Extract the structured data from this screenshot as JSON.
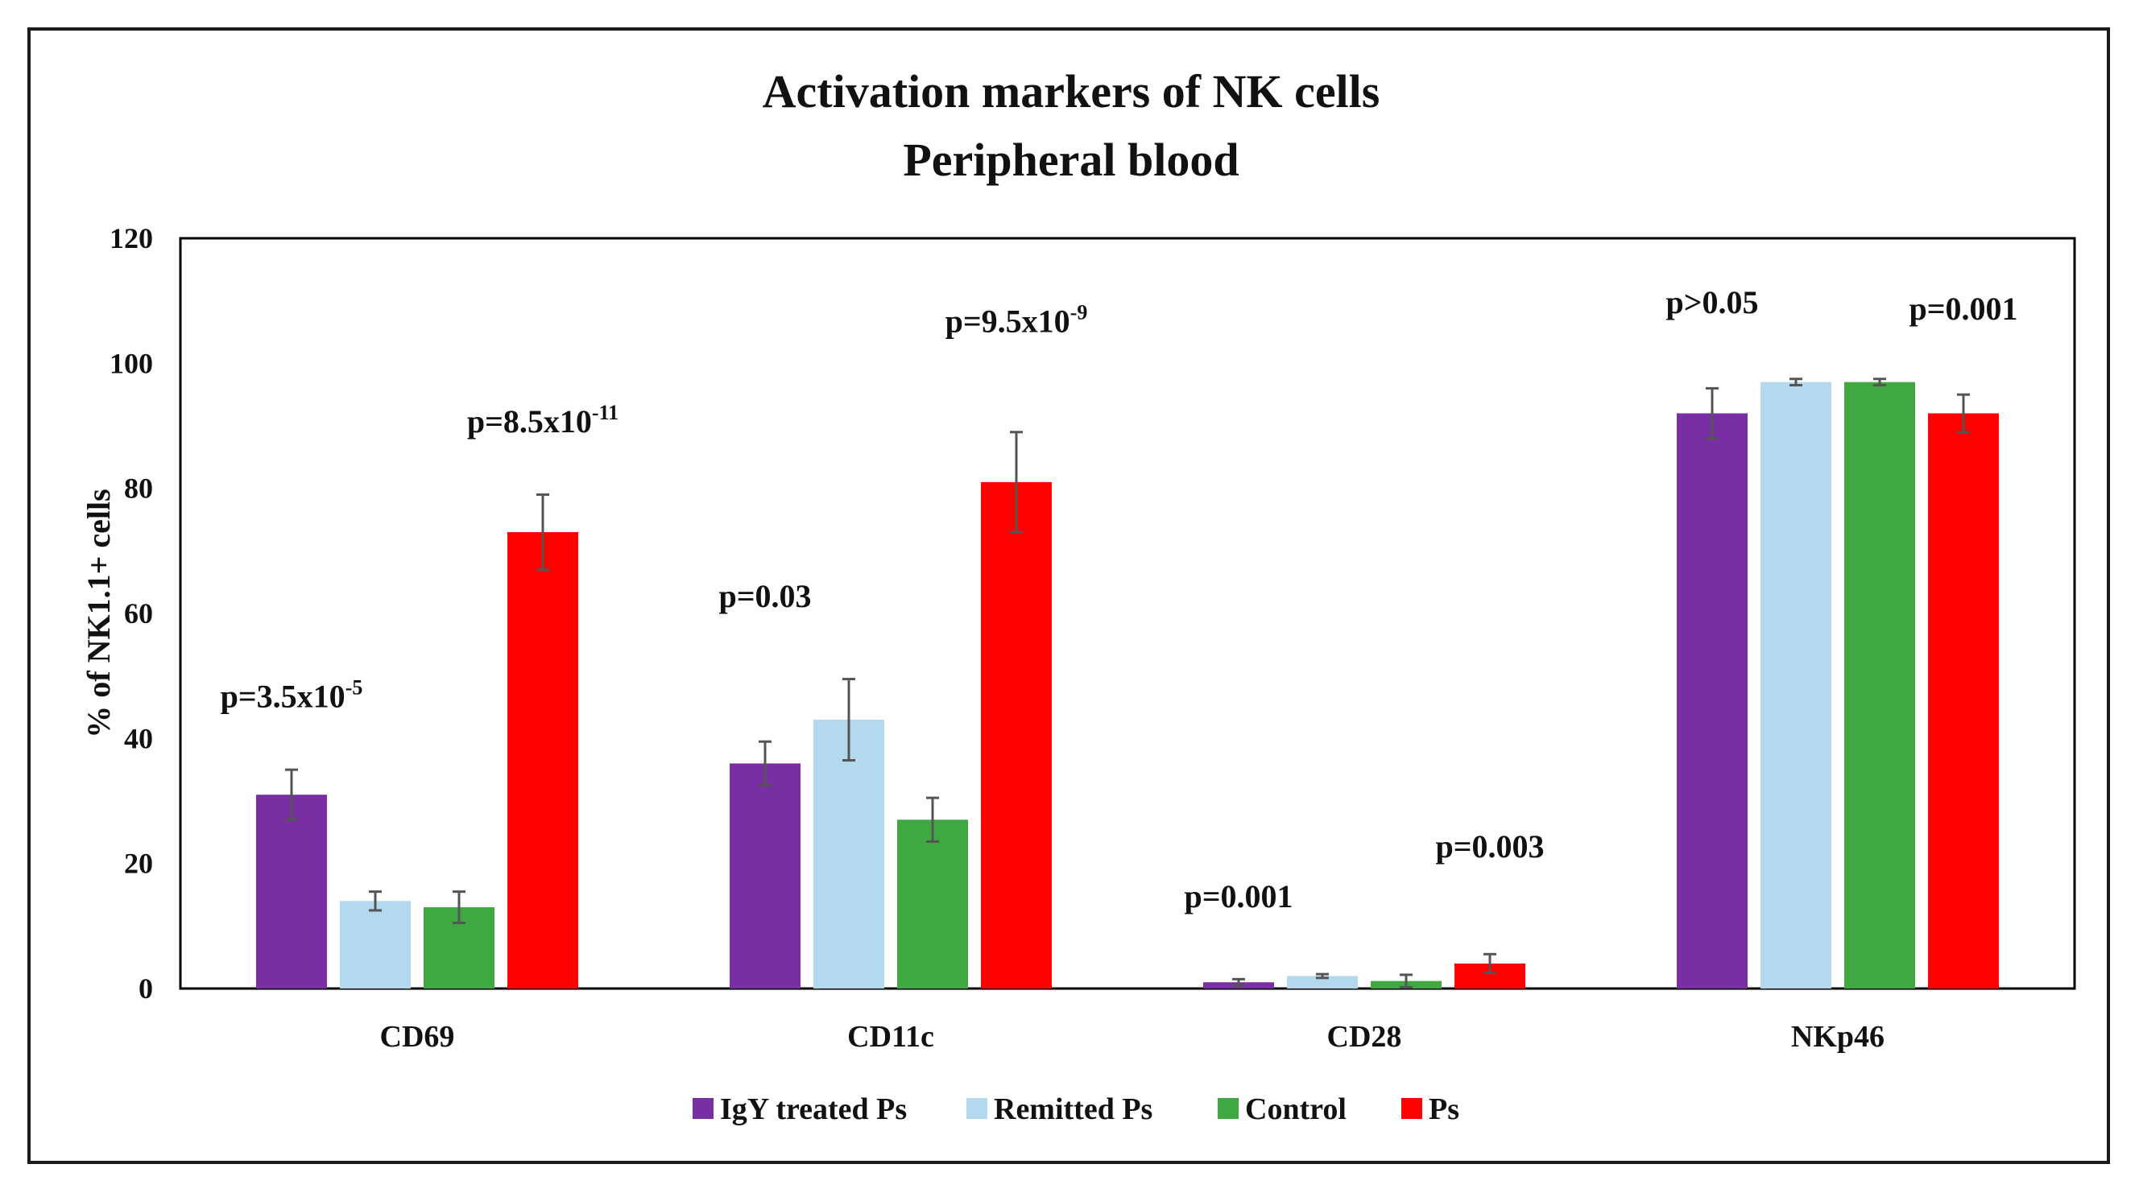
{
  "chart_data": {
    "type": "bar",
    "title": "Activation markers of NK cells",
    "subtitle": "Peripheral blood",
    "xlabel": "",
    "ylabel": "% of NK1.1+ cells",
    "ylim": [
      0,
      120
    ],
    "yticks": [
      0,
      20,
      40,
      60,
      80,
      100,
      120
    ],
    "categories": [
      "CD69",
      "CD11c",
      "CD28",
      "NKp46"
    ],
    "grid": false,
    "legend_position": "bottom",
    "series": [
      {
        "name": "IgY treated Ps",
        "color": "#7a2ea3",
        "values": [
          31,
          36,
          1,
          92
        ],
        "errors": [
          4,
          3.5,
          0.5,
          4
        ]
      },
      {
        "name": "Remitted Ps",
        "color": "#b4d8ee",
        "values": [
          14,
          43,
          2,
          97
        ],
        "errors": [
          1.5,
          6.5,
          0.3,
          0.5
        ]
      },
      {
        "name": "Control",
        "color": "#3fa843",
        "values": [
          13,
          27,
          1.2,
          97
        ],
        "errors": [
          2.5,
          3.5,
          1,
          0.5
        ]
      },
      {
        "name": "Ps",
        "color": "#ff0000",
        "values": [
          73,
          81,
          4,
          92
        ],
        "errors": [
          6,
          8,
          1.5,
          3
        ]
      }
    ],
    "annotations": [
      {
        "category": "CD69",
        "near_series": "IgY treated Ps",
        "prefix": "p=3.5x10",
        "exponent": "-5",
        "y": 45
      },
      {
        "category": "CD69",
        "near_series": "Ps",
        "prefix": "p=8.5x10",
        "exponent": "-11",
        "y": 89
      },
      {
        "category": "CD11c",
        "near_series": "IgY treated Ps",
        "prefix": "p=0.03",
        "exponent": "",
        "y": 61
      },
      {
        "category": "CD11c",
        "near_series": "Ps",
        "prefix": "p=9.5x10",
        "exponent": "-9",
        "y": 105
      },
      {
        "category": "CD28",
        "near_series": "IgY treated Ps",
        "prefix": "p=0.001",
        "exponent": "",
        "y": 13
      },
      {
        "category": "CD28",
        "near_series": "Ps",
        "prefix": "p=0.003",
        "exponent": "",
        "y": 21
      },
      {
        "category": "NKp46",
        "near_series": "IgY treated Ps",
        "prefix": "p>0.05",
        "exponent": "",
        "y": 108
      },
      {
        "category": "NKp46",
        "near_series": "Ps",
        "prefix": "p=0.001",
        "exponent": "",
        "y": 107
      }
    ]
  }
}
